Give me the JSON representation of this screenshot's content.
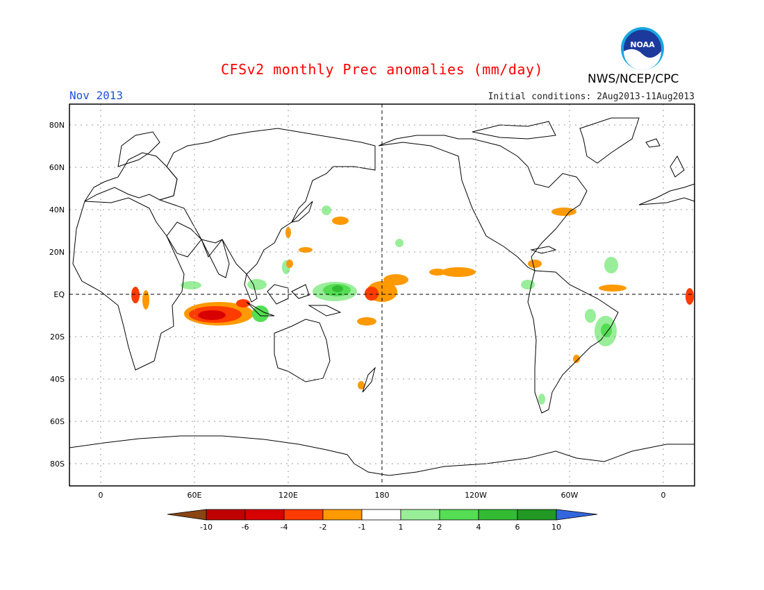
{
  "title": "CFSv2 monthly Prec anomalies (mm/day)",
  "month": "Nov 2013",
  "initial_conditions": "Initial conditions: 2Aug2013-11Aug2013",
  "agency": "NWS/NCEP/CPC",
  "logo_text": "NOAA",
  "lat_labels": [
    "80N",
    "60N",
    "40N",
    "20N",
    "EQ",
    "20S",
    "40S",
    "60S",
    "80S"
  ],
  "lon_labels": [
    "0",
    "60E",
    "120E",
    "180",
    "120W",
    "60W",
    "0"
  ],
  "colorbar": {
    "tick_labels": [
      "-10",
      "-6",
      "-4",
      "-2",
      "-1",
      "1",
      "2",
      "4",
      "6",
      "10"
    ],
    "colors": [
      "#8b4513",
      "#c00000",
      "#d90000",
      "#ff3b00",
      "#ff9900",
      "#ffffff",
      "#99ee99",
      "#55dd55",
      "#33bb33",
      "#229922",
      "#3366dd"
    ]
  },
  "chart_data": {
    "type": "map",
    "title": "CFSv2 monthly Prec anomalies (mm/day)",
    "projection": "equirectangular, centered on 180",
    "lon_range": [
      -20,
      380
    ],
    "lat_range": [
      -90,
      90
    ],
    "grid": true,
    "units": "mm/day",
    "anomaly_regions": [
      {
        "region": "tropical Indian Ocean (60E-100E, 5S-15S)",
        "sign": "dry",
        "level": "-2 to -6"
      },
      {
        "region": "western equatorial Pacific (145E-165E, EQ-5N)",
        "sign": "wet",
        "level": "1 to 4"
      },
      {
        "region": "central Pacific near dateline (175E-190E, 0-10N)",
        "sign": "dry",
        "level": "-1 to -4"
      },
      {
        "region": "eastern Brazil (45W-35W, 10S-25S)",
        "sign": "wet",
        "level": "1 to 2"
      },
      {
        "region": "eastern equatorial Indian Ocean (100E-115E, 5S-10S)",
        "sign": "wet",
        "level": "1 to 2"
      },
      {
        "region": "eastern tropical Atlantic (25W-35W, 0-5N)",
        "sign": "dry",
        "level": "-1 to -2"
      },
      {
        "region": "NW Pacific off Japan (170E, 35N)",
        "sign": "dry",
        "level": "-1 to -2"
      }
    ]
  }
}
